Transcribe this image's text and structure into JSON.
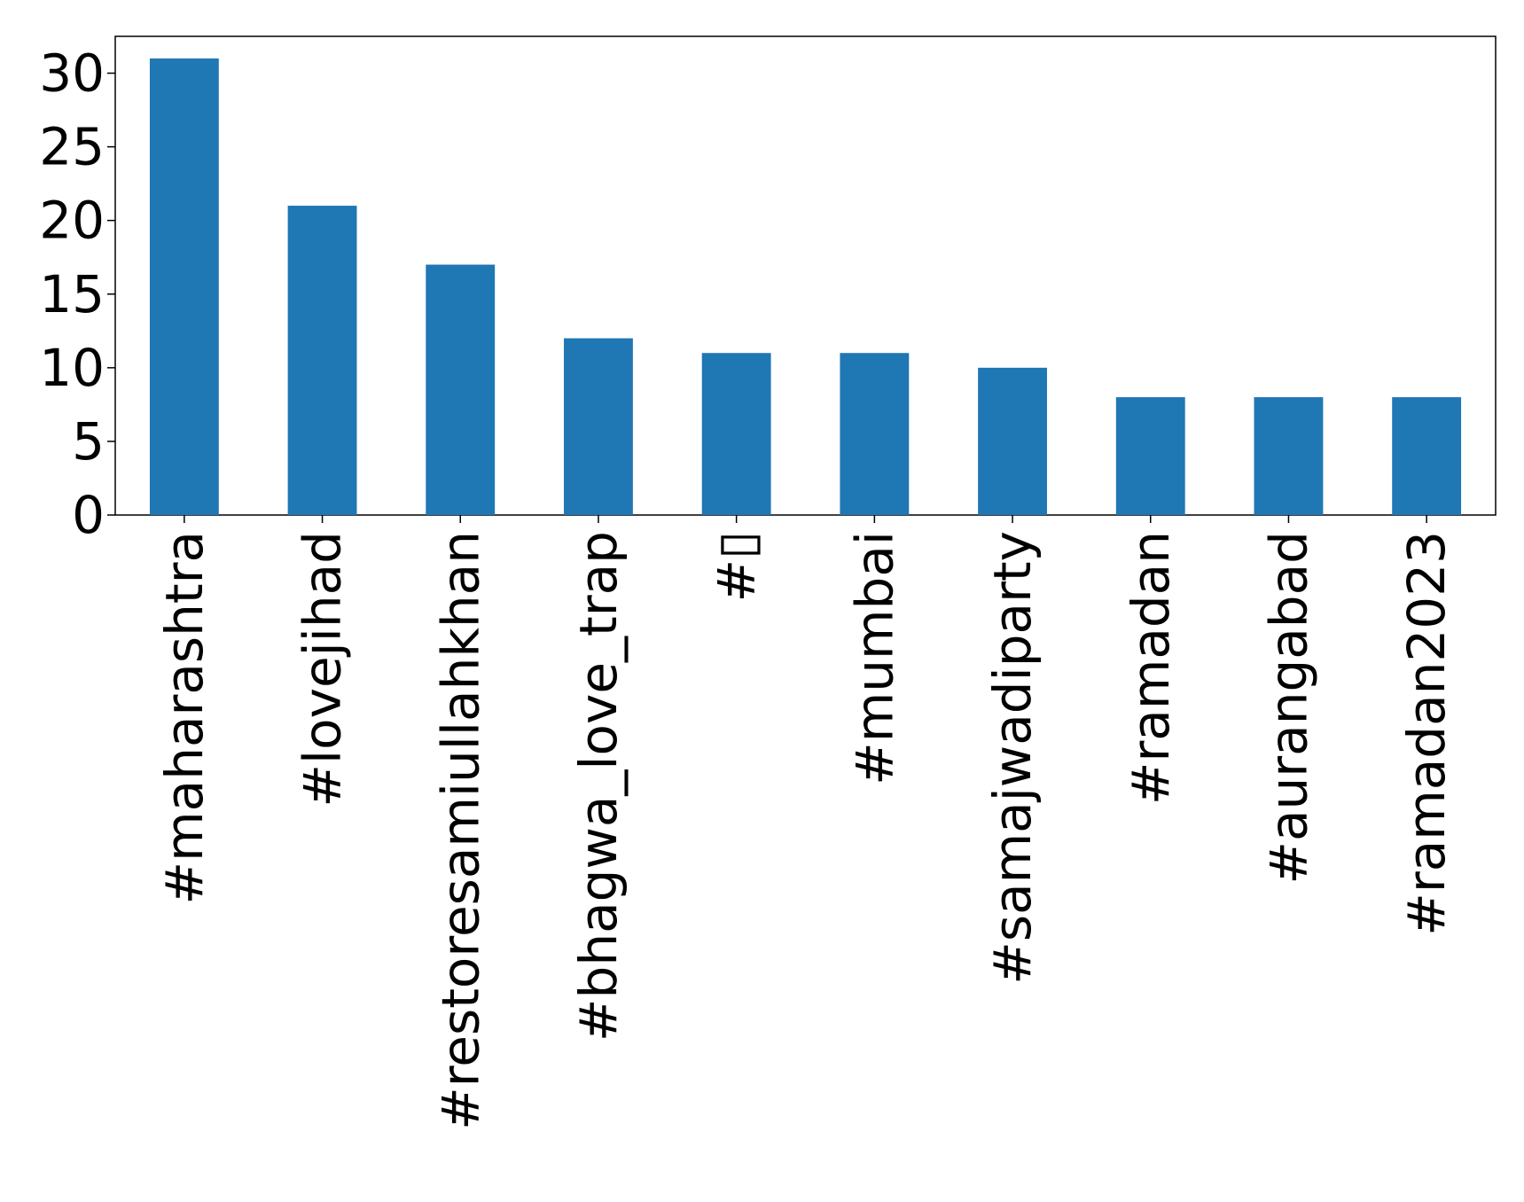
{
  "chart_data": {
    "type": "bar",
    "categories": [
      "#maharashtra",
      "#lovejihad",
      "#restoresamiullahkhan",
      "#bhagwa_love_trap",
      "#▯",
      "#mumbai",
      "#samajwadiparty",
      "#ramadan",
      "#aurangabad",
      "#ramadan2023"
    ],
    "values": [
      31,
      21,
      17,
      12,
      11,
      11,
      10,
      8,
      8,
      8
    ],
    "title": "",
    "xlabel": "",
    "ylabel": "",
    "ylim": [
      0,
      32.5
    ],
    "yticks": [
      0,
      5,
      10,
      15,
      20,
      25,
      30
    ],
    "grid": false,
    "legend": "none",
    "bar_color": "#1f77b4",
    "axis_color": "#000000"
  }
}
